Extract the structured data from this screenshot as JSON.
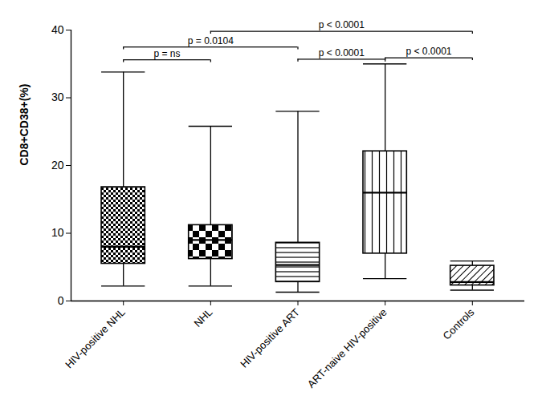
{
  "chart_data": {
    "type": "box",
    "y_label": "CD8+CD38+(%)",
    "categories": [
      "HIV-positive NHL",
      "NHL",
      "HIV-positive ART",
      "ART-naive HIV-positive",
      "Controls"
    ],
    "min": [
      2.2,
      2.2,
      1.3,
      3.3,
      1.6
    ],
    "q1": [
      5.5,
      6.2,
      2.8,
      7.0,
      2.3
    ],
    "median": [
      8.0,
      9.0,
      5.3,
      16.0,
      2.8
    ],
    "q3": [
      16.8,
      11.2,
      8.6,
      22.1,
      5.2
    ],
    "max": [
      33.8,
      25.8,
      28.0,
      35.0,
      5.9
    ],
    "comparisons": [
      {
        "from": "HIV-positive NHL",
        "to": "NHL",
        "y": 35.6,
        "label": "p = ns"
      },
      {
        "from": "HIV-positive NHL",
        "to": "HIV-positive ART",
        "y": 37.5,
        "label": "p = 0.0104"
      },
      {
        "from": "NHL",
        "to": "Controls",
        "y": 39.8,
        "label": "p < 0.0001"
      },
      {
        "from": "HIV-positive ART",
        "to": "ART-naive HIV-positive",
        "y": 35.7,
        "label": "p < 0.0001"
      },
      {
        "from": "ART-naive HIV-positive",
        "to": "Controls",
        "y": 35.9,
        "label": "p < 0.0001"
      }
    ],
    "ylim": [
      0,
      40
    ],
    "yticks": [
      0,
      10,
      20,
      30,
      40
    ],
    "grid": false,
    "color": "#000000"
  }
}
